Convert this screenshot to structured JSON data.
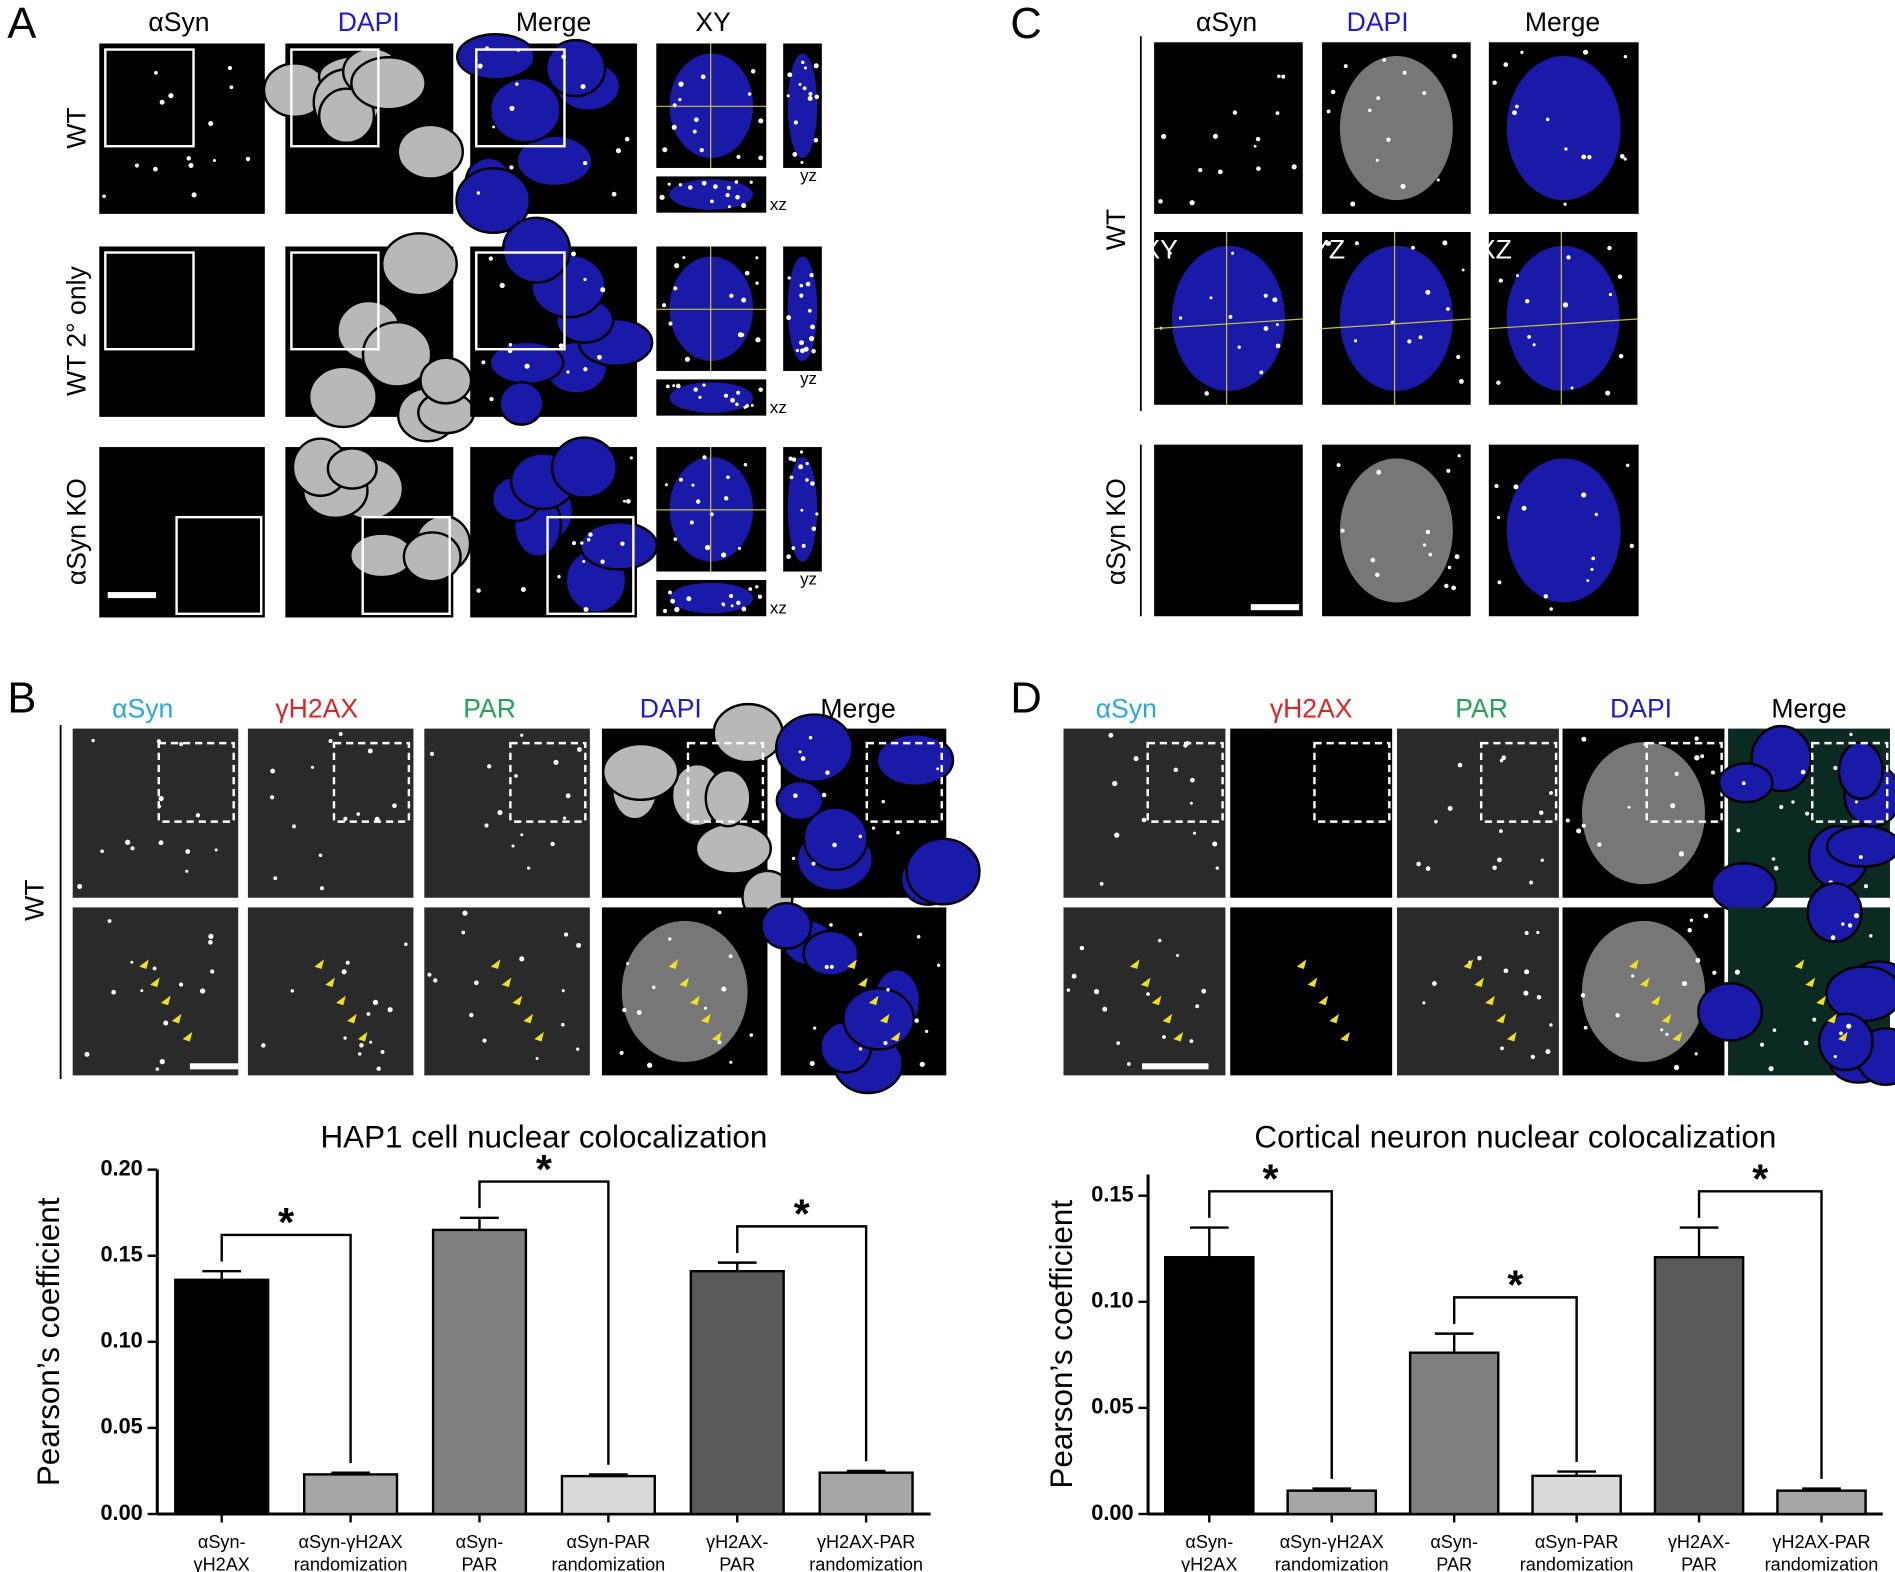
{
  "panels": {
    "A": {
      "letter": "A",
      "columns": [
        "αSyn",
        "DAPI",
        "Merge",
        "XY"
      ],
      "rows": [
        "WT",
        "WT 2° only",
        "αSyn KO"
      ],
      "view_labels": [
        "xz",
        "yz"
      ]
    },
    "B": {
      "letter": "B",
      "columns": [
        "αSyn",
        "γH2AX",
        "PAR",
        "DAPI",
        "Merge"
      ],
      "rows": [
        "WT"
      ]
    },
    "C": {
      "letter": "C",
      "columns": [
        "αSyn",
        "DAPI",
        "Merge"
      ],
      "rows": [
        "WT",
        "αSyn KO"
      ],
      "view_labels": [
        "XY",
        "YZ",
        "XZ"
      ]
    },
    "D": {
      "letter": "D",
      "columns": [
        "αSyn",
        "γH2AX",
        "PAR",
        "DAPI",
        "Merge"
      ]
    }
  },
  "chart_data": [
    {
      "type": "bar",
      "title": "HAP1 cell nuclear colocalization",
      "y_label": "Pearson’s coefficient",
      "categories": [
        [
          "αSyn-",
          "γH2AX"
        ],
        [
          "αSyn-γH2AX",
          "randomization"
        ],
        [
          "αSyn-",
          "PAR"
        ],
        [
          "αSyn-PAR",
          "randomization"
        ],
        [
          "γH2AX-",
          "PAR"
        ],
        [
          "γH2AX-PAR",
          "randomization"
        ]
      ],
      "values": [
        0.136,
        0.023,
        0.165,
        0.022,
        0.141,
        0.024
      ],
      "errors": [
        0.005,
        0.001,
        0.007,
        0.001,
        0.005,
        0.001
      ],
      "colors": [
        "#000000",
        "#a6a6a6",
        "#808080",
        "#d9d9d9",
        "#595959",
        "#a6a6a6"
      ],
      "ylim": [
        0,
        0.2
      ],
      "yticks": [
        {
          "value": 0,
          "label": "0.00"
        },
        {
          "value": 0.05,
          "label": "0.05"
        },
        {
          "value": 0.1,
          "label": "0.10"
        },
        {
          "value": 0.15,
          "label": "0.15"
        },
        {
          "value": 0.2,
          "label": "0.20"
        }
      ],
      "annotations": [
        {
          "text": "*",
          "between": [
            0,
            1
          ]
        },
        {
          "text": "*",
          "between": [
            2,
            3
          ]
        },
        {
          "text": "*",
          "between": [
            4,
            5
          ]
        }
      ]
    },
    {
      "type": "bar",
      "title": "Cortical neuron nuclear colocalization",
      "y_label": "Pearson’s coefficient",
      "categories": [
        [
          "αSyn-",
          "γH2AX"
        ],
        [
          "αSyn-γH2AX",
          "randomization"
        ],
        [
          "αSyn-",
          "PAR"
        ],
        [
          "αSyn-PAR",
          "randomization"
        ],
        [
          "γH2AX-",
          "PAR"
        ],
        [
          "γH2AX-PAR",
          "randomization"
        ]
      ],
      "values": [
        0.121,
        0.011,
        0.076,
        0.018,
        0.121,
        0.011
      ],
      "errors": [
        0.014,
        0.001,
        0.009,
        0.002,
        0.014,
        0.001
      ],
      "colors": [
        "#000000",
        "#a6a6a6",
        "#808080",
        "#d9d9d9",
        "#595959",
        "#a6a6a6"
      ],
      "ylim": [
        0,
        0.16
      ],
      "yticks": [
        {
          "value": 0,
          "label": "0.00"
        },
        {
          "value": 0.05,
          "label": "0.05"
        },
        {
          "value": 0.1,
          "label": "0.10"
        },
        {
          "value": 0.15,
          "label": "0.15"
        }
      ],
      "annotations": [
        {
          "text": "*",
          "between": [
            0,
            1
          ]
        },
        {
          "text": "*",
          "between": [
            2,
            3
          ]
        },
        {
          "text": "*",
          "between": [
            4,
            5
          ]
        }
      ]
    }
  ]
}
